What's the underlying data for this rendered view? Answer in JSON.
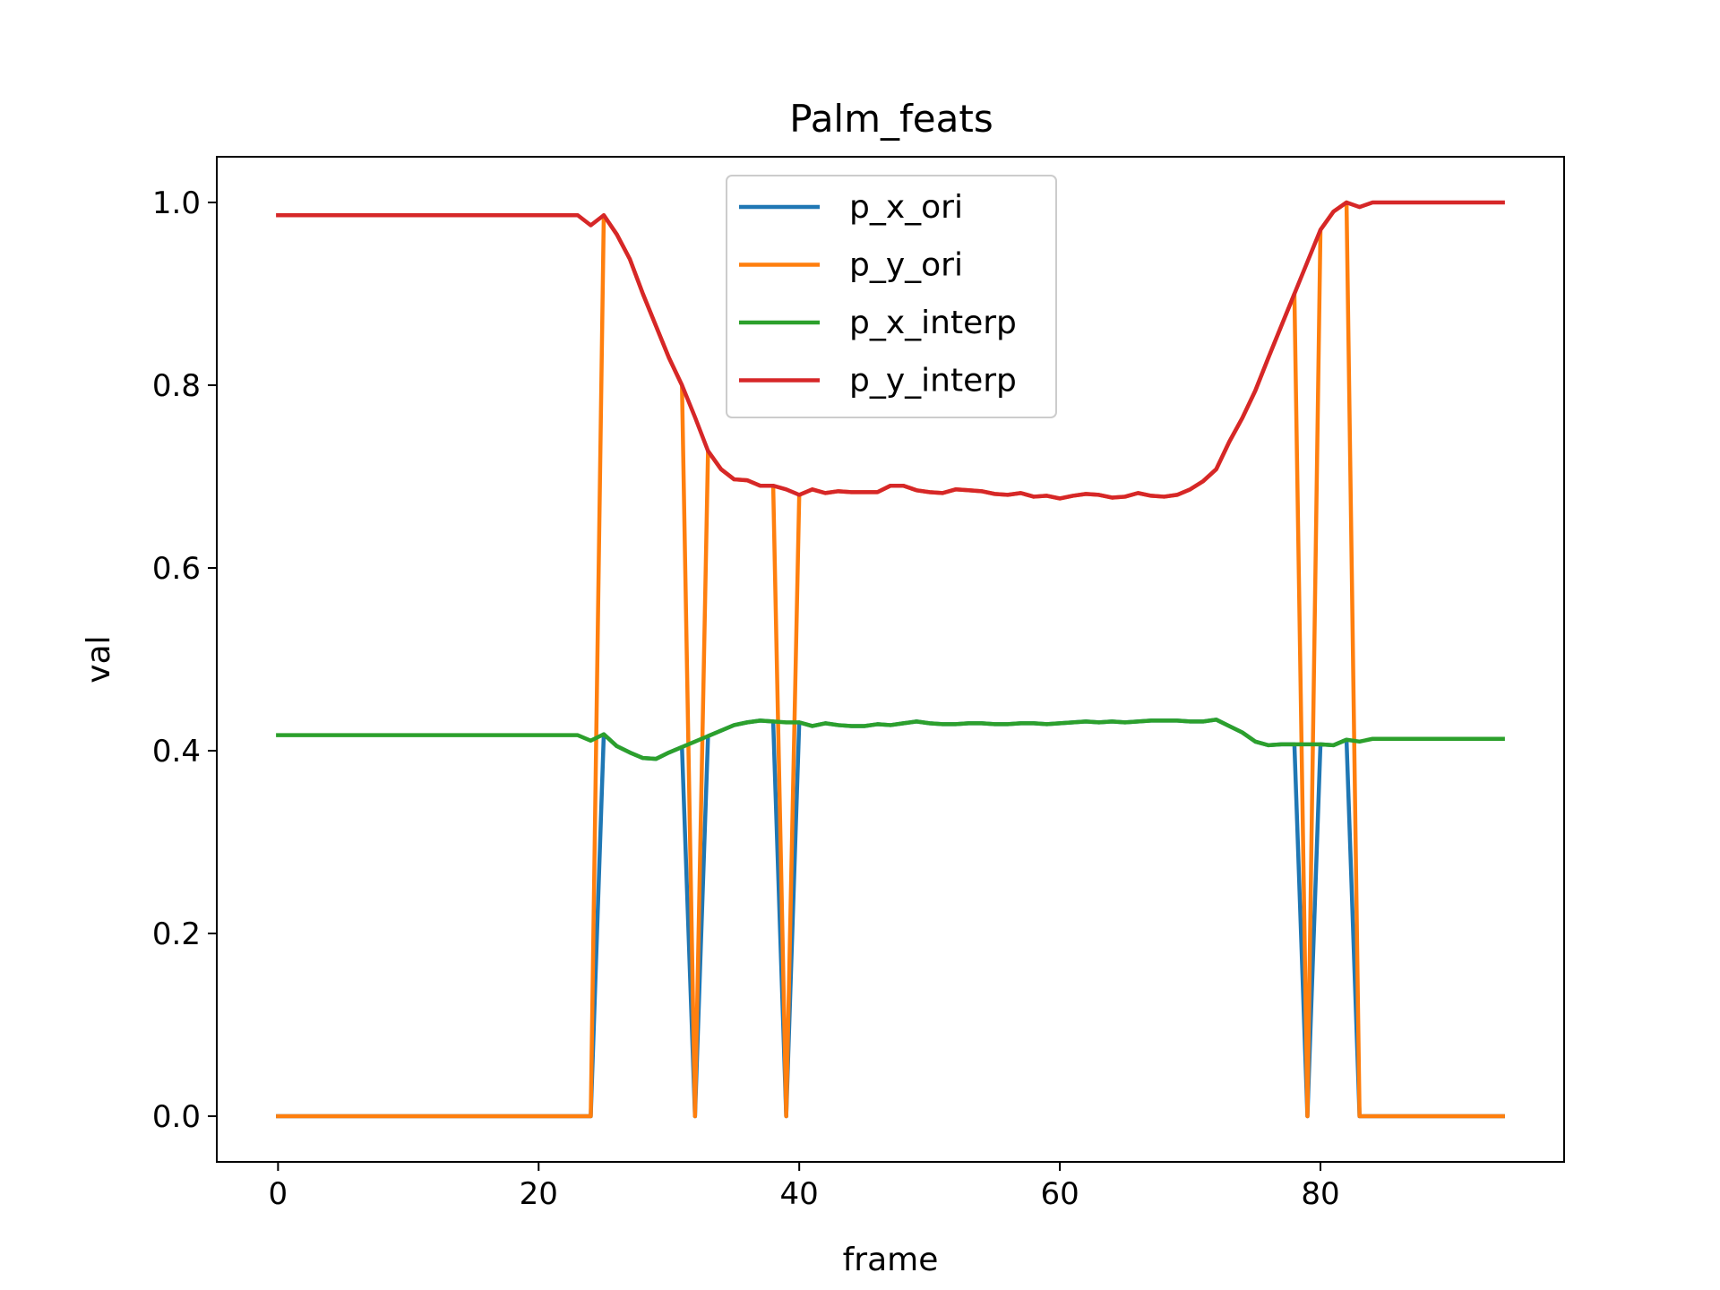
{
  "chart_data": {
    "type": "line",
    "title": "Palm_feats",
    "xlabel": "frame",
    "ylabel": "val",
    "xlim": [
      -4.7,
      98.7
    ],
    "ylim": [
      -0.05,
      1.05
    ],
    "xticks": [
      0,
      20,
      40,
      60,
      80
    ],
    "yticks": [
      0.0,
      0.2,
      0.4,
      0.6,
      0.8,
      1.0
    ],
    "xtick_labels": [
      "0",
      "20",
      "40",
      "60",
      "80"
    ],
    "ytick_labels": [
      "0.0",
      "0.2",
      "0.4",
      "0.6",
      "0.8",
      "1.0"
    ],
    "grid": false,
    "legend_position": "upper center",
    "series": [
      {
        "name": "p_x_ori",
        "color": "#1f77b4",
        "x": [
          0,
          1,
          2,
          3,
          4,
          5,
          6,
          7,
          8,
          9,
          10,
          11,
          12,
          13,
          14,
          15,
          16,
          17,
          18,
          19,
          20,
          21,
          22,
          23,
          24,
          25,
          26,
          27,
          28,
          29,
          30,
          31,
          32,
          33,
          34,
          35,
          36,
          37,
          38,
          39,
          40,
          41,
          42,
          43,
          44,
          45,
          46,
          47,
          48,
          49,
          50,
          51,
          52,
          53,
          54,
          55,
          56,
          57,
          58,
          59,
          60,
          61,
          62,
          63,
          64,
          65,
          66,
          67,
          68,
          69,
          70,
          71,
          72,
          73,
          74,
          75,
          76,
          77,
          78,
          79,
          80,
          81,
          82,
          83,
          84,
          85,
          86,
          87,
          88,
          89,
          90,
          91,
          92,
          93,
          94
        ],
        "y": [
          0,
          0,
          0,
          0,
          0,
          0,
          0,
          0,
          0,
          0,
          0,
          0,
          0,
          0,
          0,
          0,
          0,
          0,
          0,
          0,
          0,
          0,
          0,
          0,
          0,
          0.418,
          0.405,
          0.398,
          0.392,
          0.391,
          0.398,
          0.404,
          0,
          0.416,
          0.422,
          0.428,
          0.431,
          0.433,
          0.432,
          0,
          0.431,
          0.427,
          0.43,
          0.428,
          0.427,
          0.427,
          0.429,
          0.428,
          0.43,
          0.432,
          0.43,
          0.429,
          0.429,
          0.43,
          0.43,
          0.429,
          0.429,
          0.43,
          0.43,
          0.429,
          0.43,
          0.431,
          0.432,
          0.431,
          0.432,
          0.431,
          0.432,
          0.433,
          0.433,
          0.433,
          0.432,
          0.432,
          0.434,
          0.427,
          0.42,
          0.41,
          0.406,
          0.407,
          0.407,
          0,
          0.407,
          0.406,
          0.412,
          0,
          0,
          0,
          0,
          0,
          0,
          0,
          0,
          0,
          0,
          0,
          0
        ]
      },
      {
        "name": "p_y_ori",
        "color": "#ff7f0e",
        "x": [
          0,
          1,
          2,
          3,
          4,
          5,
          6,
          7,
          8,
          9,
          10,
          11,
          12,
          13,
          14,
          15,
          16,
          17,
          18,
          19,
          20,
          21,
          22,
          23,
          24,
          25,
          26,
          27,
          28,
          29,
          30,
          31,
          32,
          33,
          34,
          35,
          36,
          37,
          38,
          39,
          40,
          41,
          42,
          43,
          44,
          45,
          46,
          47,
          48,
          49,
          50,
          51,
          52,
          53,
          54,
          55,
          56,
          57,
          58,
          59,
          60,
          61,
          62,
          63,
          64,
          65,
          66,
          67,
          68,
          69,
          70,
          71,
          72,
          73,
          74,
          75,
          76,
          77,
          78,
          79,
          80,
          81,
          82,
          83,
          84,
          85,
          86,
          87,
          88,
          89,
          90,
          91,
          92,
          93,
          94
        ],
        "y": [
          0,
          0,
          0,
          0,
          0,
          0,
          0,
          0,
          0,
          0,
          0,
          0,
          0,
          0,
          0,
          0,
          0,
          0,
          0,
          0,
          0,
          0,
          0,
          0,
          0,
          0.986,
          0.965,
          0.938,
          0.9,
          0.865,
          0.83,
          0.8,
          0,
          0.728,
          0.708,
          0.697,
          0.696,
          0.69,
          0.69,
          0,
          0.68,
          0.686,
          0.682,
          0.684,
          0.683,
          0.683,
          0.683,
          0.69,
          0.69,
          0.685,
          0.683,
          0.682,
          0.686,
          0.685,
          0.684,
          0.681,
          0.68,
          0.682,
          0.678,
          0.679,
          0.676,
          0.679,
          0.681,
          0.68,
          0.677,
          0.678,
          0.682,
          0.679,
          0.678,
          0.68,
          0.686,
          0.695,
          0.708,
          0.738,
          0.764,
          0.794,
          0.83,
          0.865,
          0.9,
          0,
          0.97,
          0.99,
          1.0,
          0,
          0,
          0,
          0,
          0,
          0,
          0,
          0,
          0,
          0,
          0,
          0
        ]
      },
      {
        "name": "p_x_interp",
        "color": "#2ca02c",
        "x": [
          0,
          1,
          2,
          3,
          4,
          5,
          6,
          7,
          8,
          9,
          10,
          11,
          12,
          13,
          14,
          15,
          16,
          17,
          18,
          19,
          20,
          21,
          22,
          23,
          24,
          25,
          26,
          27,
          28,
          29,
          30,
          31,
          32,
          33,
          34,
          35,
          36,
          37,
          38,
          39,
          40,
          41,
          42,
          43,
          44,
          45,
          46,
          47,
          48,
          49,
          50,
          51,
          52,
          53,
          54,
          55,
          56,
          57,
          58,
          59,
          60,
          61,
          62,
          63,
          64,
          65,
          66,
          67,
          68,
          69,
          70,
          71,
          72,
          73,
          74,
          75,
          76,
          77,
          78,
          79,
          80,
          81,
          82,
          83,
          84,
          85,
          86,
          87,
          88,
          89,
          90,
          91,
          92,
          93,
          94
        ],
        "y": [
          0.417,
          0.417,
          0.417,
          0.417,
          0.417,
          0.417,
          0.417,
          0.417,
          0.417,
          0.417,
          0.417,
          0.417,
          0.417,
          0.417,
          0.417,
          0.417,
          0.417,
          0.417,
          0.417,
          0.417,
          0.417,
          0.417,
          0.417,
          0.417,
          0.411,
          0.418,
          0.405,
          0.398,
          0.392,
          0.391,
          0.398,
          0.404,
          0.41,
          0.416,
          0.422,
          0.428,
          0.431,
          0.433,
          0.432,
          0.431,
          0.431,
          0.427,
          0.43,
          0.428,
          0.427,
          0.427,
          0.429,
          0.428,
          0.43,
          0.432,
          0.43,
          0.429,
          0.429,
          0.43,
          0.43,
          0.429,
          0.429,
          0.43,
          0.43,
          0.429,
          0.43,
          0.431,
          0.432,
          0.431,
          0.432,
          0.431,
          0.432,
          0.433,
          0.433,
          0.433,
          0.432,
          0.432,
          0.434,
          0.427,
          0.42,
          0.41,
          0.406,
          0.407,
          0.407,
          0.407,
          0.407,
          0.406,
          0.412,
          0.41,
          0.413,
          0.413,
          0.413,
          0.413,
          0.413,
          0.413,
          0.413,
          0.413,
          0.413,
          0.413,
          0.413
        ]
      },
      {
        "name": "p_y_interp",
        "color": "#d62728",
        "x": [
          0,
          1,
          2,
          3,
          4,
          5,
          6,
          7,
          8,
          9,
          10,
          11,
          12,
          13,
          14,
          15,
          16,
          17,
          18,
          19,
          20,
          21,
          22,
          23,
          24,
          25,
          26,
          27,
          28,
          29,
          30,
          31,
          32,
          33,
          34,
          35,
          36,
          37,
          38,
          39,
          40,
          41,
          42,
          43,
          44,
          45,
          46,
          47,
          48,
          49,
          50,
          51,
          52,
          53,
          54,
          55,
          56,
          57,
          58,
          59,
          60,
          61,
          62,
          63,
          64,
          65,
          66,
          67,
          68,
          69,
          70,
          71,
          72,
          73,
          74,
          75,
          76,
          77,
          78,
          79,
          80,
          81,
          82,
          83,
          84,
          85,
          86,
          87,
          88,
          89,
          90,
          91,
          92,
          93,
          94
        ],
        "y": [
          0.986,
          0.986,
          0.986,
          0.986,
          0.986,
          0.986,
          0.986,
          0.986,
          0.986,
          0.986,
          0.986,
          0.986,
          0.986,
          0.986,
          0.986,
          0.986,
          0.986,
          0.986,
          0.986,
          0.986,
          0.986,
          0.986,
          0.986,
          0.986,
          0.975,
          0.986,
          0.965,
          0.938,
          0.9,
          0.865,
          0.83,
          0.8,
          0.765,
          0.728,
          0.708,
          0.697,
          0.696,
          0.69,
          0.69,
          0.686,
          0.68,
          0.686,
          0.682,
          0.684,
          0.683,
          0.683,
          0.683,
          0.69,
          0.69,
          0.685,
          0.683,
          0.682,
          0.686,
          0.685,
          0.684,
          0.681,
          0.68,
          0.682,
          0.678,
          0.679,
          0.676,
          0.679,
          0.681,
          0.68,
          0.677,
          0.678,
          0.682,
          0.679,
          0.678,
          0.68,
          0.686,
          0.695,
          0.708,
          0.738,
          0.764,
          0.794,
          0.83,
          0.865,
          0.9,
          0.935,
          0.97,
          0.99,
          1.0,
          0.995,
          1.0,
          1.0,
          1.0,
          1.0,
          1.0,
          1.0,
          1.0,
          1.0,
          1.0,
          1.0,
          1.0
        ]
      }
    ]
  }
}
